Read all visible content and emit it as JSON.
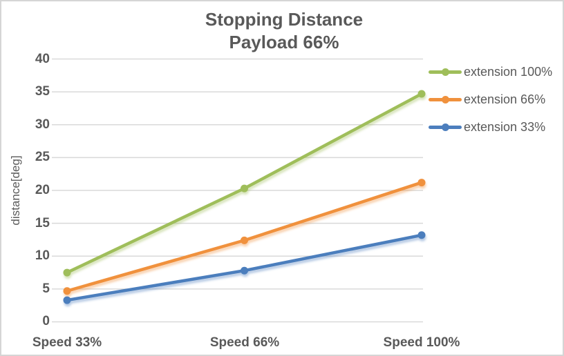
{
  "window": {
    "background": "#FFFFFF",
    "border_color": "#D5D5D5"
  },
  "chart_data": {
    "type": "line",
    "title": "Stopping Distance",
    "subtitle": "Payload 66%",
    "ylabel": "distance[deg]",
    "xlabel": "",
    "categories": [
      "Speed 33%",
      "Speed 66%",
      "Speed 100%"
    ],
    "series": [
      {
        "name": "extension 100%",
        "color": "#9FBE5A",
        "values": [
          7.5,
          20.3,
          34.7
        ]
      },
      {
        "name": "extension 66%",
        "color": "#F0913D",
        "values": [
          4.7,
          12.4,
          21.2
        ]
      },
      {
        "name": "extension 33%",
        "color": "#4C7EBD",
        "values": [
          3.3,
          7.8,
          13.2
        ]
      }
    ],
    "ylim": [
      0,
      40
    ],
    "ytick_step": 5,
    "yticks": [
      "0",
      "5",
      "10",
      "15",
      "20",
      "25",
      "30",
      "35",
      "40"
    ],
    "grid": true,
    "gridline_color": "#D9D9D9",
    "text_color": "#595959",
    "legend_position": "right",
    "marker": "circle"
  }
}
